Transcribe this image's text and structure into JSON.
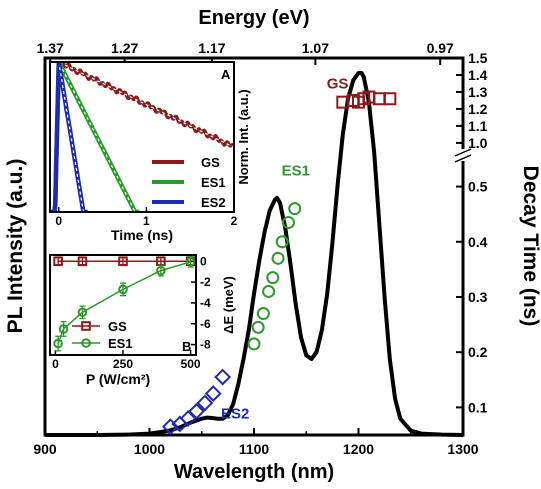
{
  "chart_data": [
    {
      "panel": "main",
      "type": "line",
      "top_axis": {
        "label": "Energy (eV)",
        "ticks": [
          1.37,
          1.27,
          1.17,
          1.07,
          0.97
        ],
        "tick_labels": [
          "1.37",
          "1.27",
          "1.17",
          "1.07",
          "0.97"
        ]
      },
      "x_axis": {
        "label": "Wavelength (nm)",
        "range": [
          900,
          1300
        ],
        "ticks": [
          900,
          1000,
          1100,
          1200,
          1300
        ],
        "tick_labels": [
          "900",
          "1000",
          "1100",
          "1200",
          "1300"
        ]
      },
      "left_axis": {
        "label": "PL Intensity (a.u.)"
      },
      "right_axis": {
        "label": "Decay Time (ns)",
        "broken": true,
        "lower_segment": {
          "range": [
            0.05,
            0.53
          ],
          "ticks": [
            0.1,
            0.2,
            0.3,
            0.4,
            0.5
          ],
          "tick_labels": [
            "0.1",
            "0.2",
            "0.3",
            "0.4",
            "0.5"
          ]
        },
        "upper_segment": {
          "range": [
            0.97,
            1.5
          ],
          "ticks": [
            1.0,
            1.1,
            1.2,
            1.3,
            1.4,
            1.5
          ],
          "tick_labels": [
            "1.0",
            "1.1",
            "1.2",
            "1.3",
            "1.4",
            "1.5"
          ]
        }
      },
      "series": [
        {
          "kind": "pl_spectrum",
          "color": "#000000",
          "x": [
            900,
            950,
            980,
            1000,
            1010,
            1020,
            1030,
            1040,
            1050,
            1055,
            1060,
            1065,
            1070,
            1075,
            1080,
            1085,
            1090,
            1095,
            1100,
            1105,
            1110,
            1115,
            1120,
            1122,
            1125,
            1130,
            1135,
            1140,
            1145,
            1150,
            1155,
            1160,
            1165,
            1170,
            1175,
            1180,
            1185,
            1190,
            1195,
            1200,
            1203,
            1205,
            1210,
            1215,
            1220,
            1225,
            1230,
            1235,
            1240,
            1250,
            1260,
            1280,
            1300
          ],
          "y": [
            0.0,
            0.0,
            0.001,
            0.004,
            0.008,
            0.013,
            0.022,
            0.035,
            0.045,
            0.048,
            0.047,
            0.045,
            0.045,
            0.055,
            0.085,
            0.14,
            0.21,
            0.29,
            0.39,
            0.48,
            0.56,
            0.62,
            0.65,
            0.655,
            0.64,
            0.57,
            0.47,
            0.36,
            0.27,
            0.22,
            0.21,
            0.23,
            0.29,
            0.39,
            0.53,
            0.69,
            0.83,
            0.93,
            0.98,
            1.0,
            1.0,
            0.99,
            0.92,
            0.78,
            0.58,
            0.38,
            0.21,
            0.1,
            0.045,
            0.012,
            0.004,
            0.001,
            0.0
          ]
        },
        {
          "name": "GS",
          "kind": "decay_time",
          "color": "#8b1a1a",
          "marker": "square",
          "x": [
            1185,
            1195,
            1200,
            1205,
            1210,
            1220,
            1230
          ],
          "y": [
            1.24,
            1.25,
            1.24,
            1.26,
            1.27,
            1.26,
            1.26
          ]
        },
        {
          "name": "ES1",
          "kind": "decay_time",
          "color": "#2a9a2a",
          "marker": "circle",
          "x": [
            1100,
            1104,
            1109,
            1114,
            1118,
            1123,
            1127,
            1133,
            1139
          ],
          "y": [
            0.215,
            0.245,
            0.27,
            0.31,
            0.335,
            0.37,
            0.4,
            0.435,
            0.46
          ]
        },
        {
          "name": "ES2",
          "kind": "decay_time",
          "color": "#1f2bb0",
          "marker": "diamond",
          "x": [
            1020,
            1029,
            1037,
            1045,
            1053,
            1061,
            1070
          ],
          "y": [
            0.065,
            0.07,
            0.08,
            0.093,
            0.108,
            0.125,
            0.155
          ]
        }
      ],
      "annotations": [
        {
          "text": "GS",
          "color": "#8b1a1a",
          "x": 1180,
          "y": 1.32
        },
        {
          "text": "ES1",
          "color": "#2a9a2a",
          "x": 1140,
          "y": 0.52
        },
        {
          "text": "ES2",
          "color": "#1f2bb0",
          "x": 1082,
          "y": 0.08
        }
      ]
    },
    {
      "panel": "inset-A",
      "type": "line",
      "label": "A",
      "x_axis": {
        "label": "Time (ns)",
        "range": [
          -0.1,
          2
        ],
        "ticks": [
          0,
          1,
          2
        ],
        "tick_labels": [
          "0",
          "1",
          "2"
        ]
      },
      "y_axis": {
        "label": "Norm. Int. (a.u.)",
        "log_scale": true,
        "range": [
          0.06,
          1.0
        ]
      },
      "legend": {
        "placement": "bottom-right",
        "entries": [
          "GS",
          "ES1",
          "ES2"
        ]
      },
      "series": [
        {
          "name": "GS",
          "color": "#8b1a1a",
          "lifetime_ns": 1.25,
          "noise": true
        },
        {
          "name": "ES1",
          "color": "#2a9a2a",
          "lifetime_ns": 0.31
        },
        {
          "name": "ES2",
          "color": "#1f2bb0",
          "lifetime_ns": 0.1
        }
      ],
      "fit_lines": {
        "color": "#ffffff",
        "style": "dashed"
      }
    },
    {
      "panel": "inset-B",
      "type": "line",
      "label": "B",
      "x_axis": {
        "label": "P (W/cm²)",
        "range": [
          -20,
          520
        ],
        "ticks": [
          0,
          250,
          500
        ],
        "tick_labels": [
          "0",
          "250",
          "500"
        ]
      },
      "y_axis": {
        "label": "ΔE (meV)",
        "position": "right",
        "range": [
          -9,
          0.6
        ],
        "ticks": [
          0,
          -2,
          -4,
          -6,
          -8
        ],
        "tick_labels": [
          "0",
          "-2",
          "-4",
          "-6",
          "-8"
        ]
      },
      "legend": {
        "placement": "bottom-center",
        "entries": [
          "GS",
          "ES1"
        ]
      },
      "series": [
        {
          "name": "GS",
          "color": "#8b1a1a",
          "marker": "square",
          "x": [
            10,
            100,
            250,
            390,
            500
          ],
          "y": [
            0,
            0,
            0,
            0,
            0
          ],
          "err": [
            0.4,
            0.4,
            0.4,
            0.4,
            0.4
          ]
        },
        {
          "name": "ES1",
          "color": "#2a9a2a",
          "marker": "circle",
          "x": [
            10,
            30,
            100,
            250,
            390,
            500
          ],
          "y": [
            -7.9,
            -6.5,
            -4.9,
            -2.7,
            -0.9,
            -0.05
          ],
          "err": [
            0.7,
            0.7,
            0.6,
            0.6,
            0.5,
            0.5
          ]
        }
      ]
    }
  ]
}
